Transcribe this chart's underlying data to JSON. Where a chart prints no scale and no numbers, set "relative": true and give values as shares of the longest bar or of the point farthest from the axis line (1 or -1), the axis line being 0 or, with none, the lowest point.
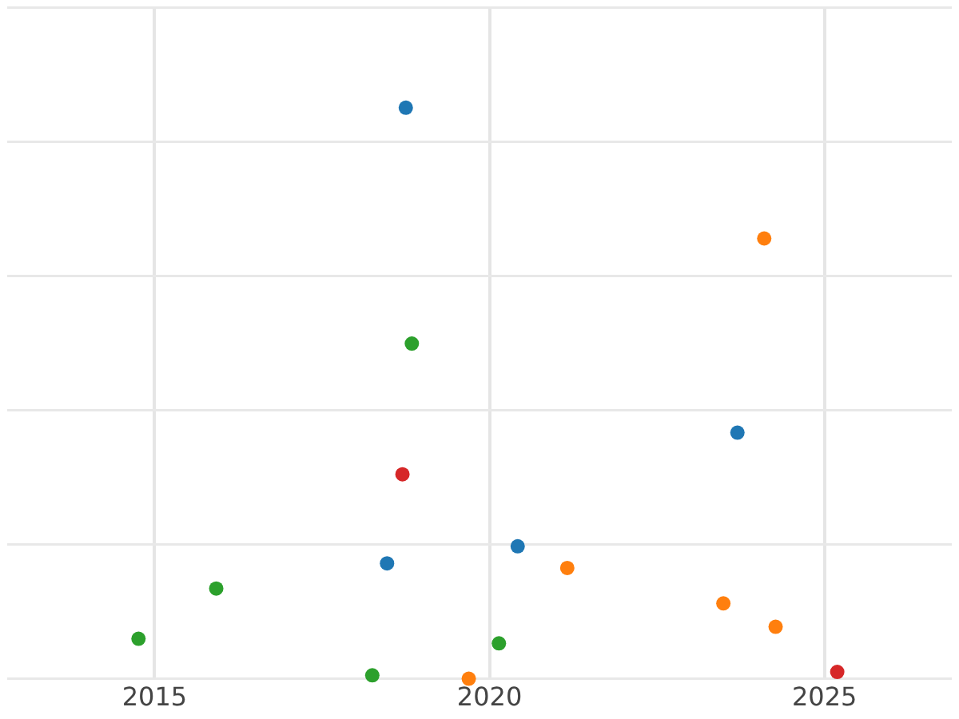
{
  "chart_data": {
    "type": "scatter",
    "relative": true,
    "grid": true,
    "legend": false,
    "marker": "circle",
    "xlim": [
      2012.8,
      2026.9
    ],
    "xticks": [
      2015,
      2020,
      2025
    ],
    "series": [
      {
        "color": "#1f77b4",
        "x": [
          2018.75,
          2023.7,
          2018.47,
          2020.42
        ],
        "values": [
          1,
          0.431,
          0.202,
          0.232
        ]
      },
      {
        "color": "#ff7f0e",
        "x": [
          2024.1,
          2021.16,
          2023.49,
          2024.27,
          2019.69
        ],
        "values": [
          0.771,
          0.194,
          0.132,
          0.091,
          0
        ]
      },
      {
        "color": "#2ca02c",
        "x": [
          2018.84,
          2015.92,
          2014.76,
          2020.14,
          2018.25
        ],
        "values": [
          0.587,
          0.158,
          0.07,
          0.062,
          0.006
        ]
      },
      {
        "color": "#d62728",
        "x": [
          2018.7,
          2025.19
        ],
        "values": [
          0.358,
          0.012
        ]
      }
    ]
  }
}
